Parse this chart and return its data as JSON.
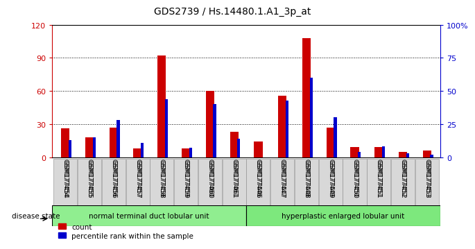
{
  "title": "GDS2739 / Hs.14480.1.A1_3p_at",
  "samples": [
    "GSM177454",
    "GSM177455",
    "GSM177456",
    "GSM177457",
    "GSM177458",
    "GSM177459",
    "GSM177460",
    "GSM177461",
    "GSM177446",
    "GSM177447",
    "GSM177448",
    "GSM177449",
    "GSM177450",
    "GSM177451",
    "GSM177452",
    "GSM177453"
  ],
  "counts": [
    26,
    18,
    27,
    8,
    92,
    8,
    60,
    23,
    14,
    56,
    108,
    27,
    9,
    9,
    5,
    6
  ],
  "percentiles": [
    13,
    15,
    28,
    11,
    44,
    7,
    40,
    14,
    0,
    43,
    60,
    30,
    4,
    8,
    3,
    2
  ],
  "group1_label": "normal terminal duct lobular unit",
  "group1_count": 8,
  "group2_label": "hyperplastic enlarged lobular unit",
  "group2_count": 8,
  "disease_state_label": "disease state",
  "count_color": "#cc0000",
  "percentile_color": "#0000cc",
  "ylim_left": [
    0,
    120
  ],
  "ylim_right": [
    0,
    100
  ],
  "yticks_left": [
    0,
    30,
    60,
    90,
    120
  ],
  "yticks_right": [
    0,
    25,
    50,
    75,
    100
  ],
  "ytick_labels_right": [
    "0",
    "25",
    "50",
    "75",
    "100%"
  ],
  "group1_color": "#90ee90",
  "group2_color": "#7de87d",
  "bg_color": "#ffffff",
  "legend_count": "count",
  "legend_percentile": "percentile rank within the sample"
}
